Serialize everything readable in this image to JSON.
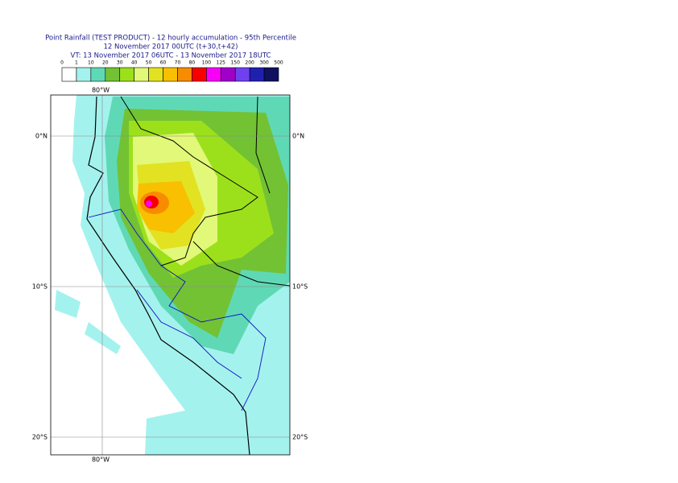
{
  "header": {
    "line1": "Point Rainfall (TEST PRODUCT) - 12 hourly accumulation - 95th Percentile",
    "line2": "12 November 2017 00UTC (t+30,t+42)",
    "line3": "VT: 13 November 2017 06UTC - 13 November 2017 18UTC"
  },
  "legend": {
    "ticks": [
      0,
      1,
      10,
      20,
      30,
      40,
      50,
      60,
      70,
      80,
      100,
      125,
      150,
      200,
      300,
      500
    ],
    "colors": [
      "#ffffff",
      "#a4f2ee",
      "#5fd9b5",
      "#72c234",
      "#9ce01c",
      "#e2f878",
      "#e2e222",
      "#f8c000",
      "#f88c00",
      "#f80000",
      "#f800f8",
      "#a000c8",
      "#7040f0",
      "#2020b0",
      "#101060"
    ]
  },
  "map": {
    "lon_label": "80°W",
    "lat_labels": [
      "0°N",
      "10°S",
      "20°S"
    ]
  }
}
